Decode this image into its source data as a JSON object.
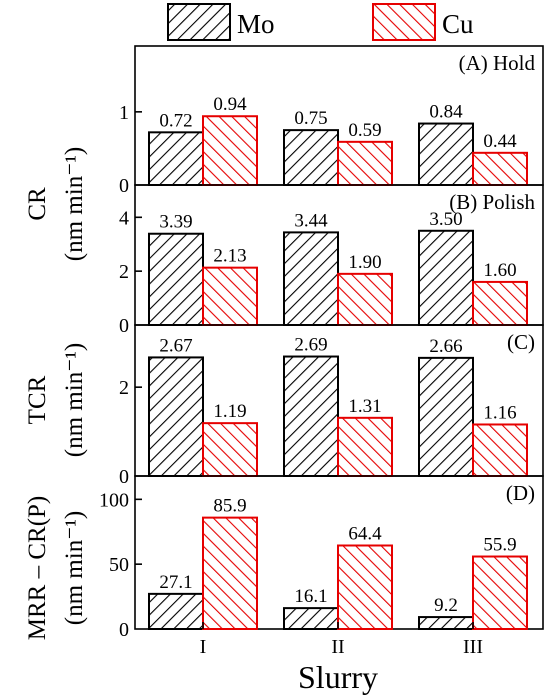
{
  "legend": {
    "items": [
      {
        "label": "Mo",
        "color": "#000000"
      },
      {
        "label": "Cu",
        "color": "#e60000"
      }
    ]
  },
  "xlabel": "Slurry",
  "categories": [
    "I",
    "II",
    "III"
  ],
  "ylabels": {
    "cr_top": "CR",
    "cr_bottom": "(nm min⁻¹)",
    "tcr_top": "TCR",
    "tcr_bottom": "(nm min⁻¹)",
    "mrr_top": "MRR – CR(P)",
    "mrr_bottom": "(nm min⁻¹)"
  },
  "chart_data": [
    {
      "type": "bar",
      "title": "(A) Hold",
      "categories": [
        "I",
        "II",
        "III"
      ],
      "series": [
        {
          "name": "Mo",
          "values": [
            0.72,
            0.75,
            0.84
          ],
          "labels": [
            "0.72",
            "0.75",
            "0.84"
          ]
        },
        {
          "name": "Cu",
          "values": [
            0.94,
            0.59,
            0.44
          ],
          "labels": [
            "0.94",
            "0.59",
            "0.44"
          ]
        }
      ],
      "ylim": [
        0,
        1.9
      ],
      "yticks": [
        0,
        1
      ]
    },
    {
      "type": "bar",
      "title": "(B) Polish",
      "categories": [
        "I",
        "II",
        "III"
      ],
      "series": [
        {
          "name": "Mo",
          "values": [
            3.39,
            3.44,
            3.5
          ],
          "labels": [
            "3.39",
            "3.44",
            "3.50"
          ]
        },
        {
          "name": "Cu",
          "values": [
            2.13,
            1.9,
            1.6
          ],
          "labels": [
            "2.13",
            "1.90",
            "1.60"
          ]
        }
      ],
      "ylim": [
        0,
        5.2
      ],
      "yticks": [
        0,
        2,
        4
      ]
    },
    {
      "type": "bar",
      "title": "(C)",
      "categories": [
        "I",
        "II",
        "III"
      ],
      "series": [
        {
          "name": "Mo",
          "values": [
            2.67,
            2.69,
            2.66
          ],
          "labels": [
            "2.67",
            "2.69",
            "2.66"
          ]
        },
        {
          "name": "Cu",
          "values": [
            1.19,
            1.31,
            1.16
          ],
          "labels": [
            "1.19",
            "1.31",
            "1.16"
          ]
        }
      ],
      "ylim": [
        0,
        3.4
      ],
      "yticks": [
        0,
        2
      ]
    },
    {
      "type": "bar",
      "title": "(D)",
      "categories": [
        "I",
        "II",
        "III"
      ],
      "series": [
        {
          "name": "Mo",
          "values": [
            27.1,
            16.1,
            9.2
          ],
          "labels": [
            "27.1",
            "16.1",
            "9.2"
          ]
        },
        {
          "name": "Cu",
          "values": [
            85.9,
            64.4,
            55.9
          ],
          "labels": [
            "85.9",
            "64.4",
            "55.9"
          ]
        }
      ],
      "ylim": [
        0,
        118
      ],
      "yticks": [
        0,
        50,
        100
      ]
    }
  ]
}
